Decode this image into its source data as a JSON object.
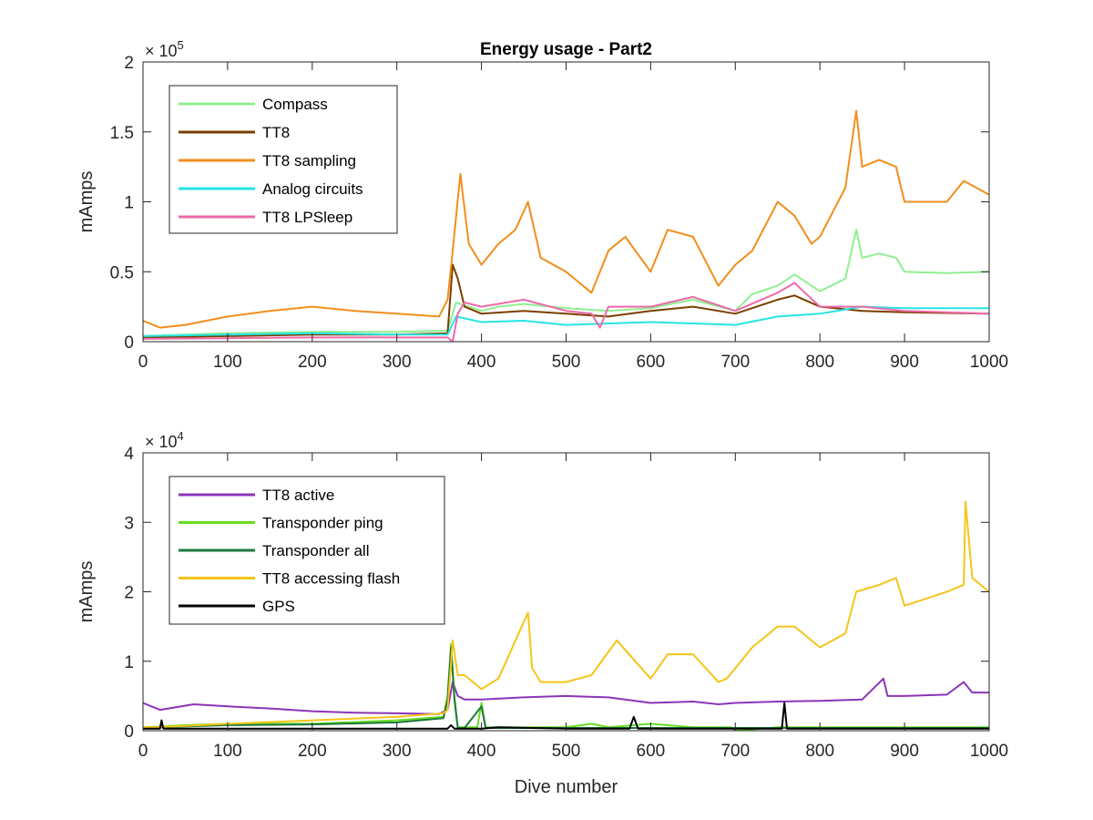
{
  "chart_data": [
    {
      "type": "line",
      "title": "Energy usage - Part2",
      "xlabel": "",
      "ylabel": "mAmps",
      "xlim": [
        0,
        1000
      ],
      "ylim": [
        0,
        200000
      ],
      "x_ticks": [
        0,
        100,
        200,
        300,
        400,
        500,
        600,
        700,
        800,
        900,
        1000
      ],
      "y_ticks": [
        0,
        50000,
        100000,
        150000,
        200000
      ],
      "y_tick_labels": [
        "0",
        "0.5",
        "1",
        "1.5",
        "2"
      ],
      "y_exponent_base": "× 10",
      "y_exponent": "5",
      "legend_position": "top-left",
      "grid": false,
      "series": [
        {
          "name": "Compass",
          "color": "#90ee90",
          "x": [
            0,
            50,
            100,
            200,
            300,
            360,
            370,
            380,
            400,
            420,
            450,
            500,
            550,
            600,
            650,
            700,
            720,
            750,
            770,
            800,
            830,
            843,
            850,
            870,
            890,
            900,
            950,
            1000
          ],
          "y": [
            4000,
            5000,
            6000,
            7000,
            7000,
            8000,
            28000,
            26000,
            22000,
            25000,
            27000,
            24000,
            22000,
            24000,
            30000,
            22000,
            34000,
            40000,
            48000,
            36000,
            45000,
            80000,
            60000,
            63000,
            60000,
            50000,
            49000,
            50000
          ]
        },
        {
          "name": "TT8",
          "color": "#7b3f00",
          "x": [
            0,
            100,
            200,
            300,
            360,
            366,
            372,
            380,
            400,
            450,
            500,
            550,
            600,
            650,
            700,
            750,
            770,
            800,
            850,
            900,
            1000
          ],
          "y": [
            3000,
            4000,
            5000,
            5000,
            6000,
            55000,
            45000,
            25000,
            20000,
            22000,
            20000,
            18000,
            22000,
            25000,
            20000,
            30000,
            33000,
            25000,
            22000,
            21000,
            20000
          ]
        },
        {
          "name": "TT8 sampling",
          "color": "#f28e1c",
          "x": [
            0,
            20,
            50,
            100,
            150,
            200,
            250,
            300,
            350,
            360,
            366,
            375,
            385,
            400,
            420,
            440,
            455,
            470,
            500,
            530,
            550,
            570,
            600,
            620,
            650,
            680,
            700,
            720,
            750,
            770,
            790,
            800,
            830,
            843,
            850,
            870,
            890,
            900,
            950,
            970,
            1000
          ],
          "y": [
            15000,
            10000,
            12000,
            18000,
            22000,
            25000,
            22000,
            20000,
            18000,
            30000,
            65000,
            120000,
            70000,
            55000,
            70000,
            80000,
            100000,
            60000,
            50000,
            35000,
            65000,
            75000,
            50000,
            80000,
            75000,
            40000,
            55000,
            65000,
            100000,
            90000,
            70000,
            75000,
            110000,
            165000,
            125000,
            130000,
            125000,
            100000,
            100000,
            115000,
            105000
          ]
        },
        {
          "name": "Analog circuits",
          "color": "#26e5e5",
          "x": [
            0,
            100,
            200,
            300,
            360,
            370,
            400,
            450,
            500,
            550,
            600,
            650,
            700,
            750,
            800,
            850,
            900,
            1000
          ],
          "y": [
            4000,
            5000,
            6000,
            5000,
            5000,
            18000,
            14000,
            15000,
            12000,
            13000,
            14000,
            13000,
            12000,
            18000,
            20000,
            25000,
            24000,
            24000
          ]
        },
        {
          "name": "TT8 LPSleep",
          "color": "#ec6aa9",
          "x": [
            0,
            100,
            200,
            300,
            360,
            366,
            372,
            380,
            400,
            450,
            500,
            530,
            540,
            550,
            600,
            650,
            700,
            750,
            770,
            800,
            850,
            900,
            1000
          ],
          "y": [
            2000,
            2500,
            3000,
            3000,
            3000,
            0,
            20000,
            28000,
            25000,
            30000,
            22000,
            20000,
            10000,
            25000,
            25000,
            32000,
            22000,
            35000,
            42000,
            25000,
            25000,
            22000,
            20000
          ]
        }
      ]
    },
    {
      "type": "line",
      "title": "",
      "xlabel": "Dive number",
      "ylabel": "mAmps",
      "xlim": [
        0,
        1000
      ],
      "ylim": [
        0,
        40000
      ],
      "x_ticks": [
        0,
        100,
        200,
        300,
        400,
        500,
        600,
        700,
        800,
        900,
        1000
      ],
      "y_ticks": [
        0,
        10000,
        20000,
        30000,
        40000
      ],
      "y_tick_labels": [
        "0",
        "1",
        "2",
        "3",
        "4"
      ],
      "y_exponent_base": "× 10",
      "y_exponent": "4",
      "legend_position": "top-left",
      "grid": false,
      "series": [
        {
          "name": "TT8 active",
          "color": "#8a35b8",
          "x": [
            0,
            20,
            60,
            100,
            150,
            200,
            250,
            300,
            350,
            360,
            366,
            372,
            380,
            400,
            450,
            500,
            550,
            600,
            650,
            680,
            700,
            750,
            800,
            850,
            875,
            880,
            900,
            950,
            970,
            980,
            1000
          ],
          "y": [
            4000,
            3000,
            3800,
            3500,
            3200,
            2800,
            2600,
            2500,
            2400,
            3000,
            7000,
            5000,
            4500,
            4500,
            4800,
            5000,
            4800,
            4000,
            4200,
            3800,
            4000,
            4200,
            4300,
            4500,
            7500,
            5000,
            5000,
            5200,
            7000,
            5500,
            5500
          ]
        },
        {
          "name": "Transponder ping",
          "color": "#66dd22",
          "x": [
            0,
            50,
            100,
            200,
            300,
            355,
            360,
            364,
            368,
            372,
            380,
            395,
            400,
            405,
            410,
            450,
            500,
            530,
            550,
            600,
            650,
            690,
            695,
            700,
            750,
            800,
            850,
            900,
            1000
          ],
          "y": [
            500,
            800,
            1000,
            1000,
            1500,
            2000,
            5000,
            12500,
            5000,
            500,
            500,
            500,
            4000,
            500,
            500,
            500,
            500,
            1000,
            500,
            1000,
            500,
            500,
            500,
            0,
            500,
            500,
            500,
            500,
            500
          ]
        },
        {
          "name": "Transponder all",
          "color": "#1f7a3d",
          "x": [
            0,
            50,
            100,
            200,
            300,
            355,
            360,
            364,
            368,
            372,
            380,
            400,
            405,
            410,
            500,
            600,
            700,
            800,
            900,
            1000
          ],
          "y": [
            400,
            600,
            800,
            900,
            1200,
            1800,
            4500,
            12000,
            4500,
            400,
            400,
            3500,
            400,
            400,
            400,
            400,
            400,
            400,
            400,
            400
          ]
        },
        {
          "name": "TT8 accessing flash",
          "color": "#f5c518",
          "x": [
            0,
            50,
            100,
            200,
            300,
            355,
            360,
            366,
            372,
            380,
            400,
            420,
            455,
            460,
            470,
            500,
            530,
            560,
            600,
            620,
            650,
            680,
            690,
            700,
            720,
            750,
            770,
            800,
            830,
            843,
            870,
            890,
            900,
            950,
            970,
            972,
            980,
            1000
          ],
          "y": [
            500,
            700,
            1000,
            1500,
            2000,
            2500,
            3000,
            13000,
            8000,
            8000,
            6000,
            7500,
            17000,
            9000,
            7000,
            7000,
            8000,
            13000,
            7500,
            11000,
            11000,
            7000,
            7500,
            9000,
            12000,
            15000,
            15000,
            12000,
            14000,
            20000,
            21000,
            22000,
            18000,
            20000,
            21000,
            33000,
            22000,
            20000
          ]
        },
        {
          "name": "GPS",
          "color": "#000000",
          "x": [
            0,
            20,
            22,
            24,
            100,
            200,
            300,
            360,
            364,
            368,
            400,
            420,
            500,
            575,
            580,
            585,
            600,
            700,
            755,
            758,
            761,
            800,
            900,
            1000
          ],
          "y": [
            300,
            300,
            1500,
            300,
            300,
            300,
            300,
            300,
            800,
            300,
            300,
            500,
            300,
            300,
            2000,
            300,
            300,
            300,
            300,
            4000,
            300,
            300,
            300,
            300
          ]
        }
      ]
    }
  ]
}
